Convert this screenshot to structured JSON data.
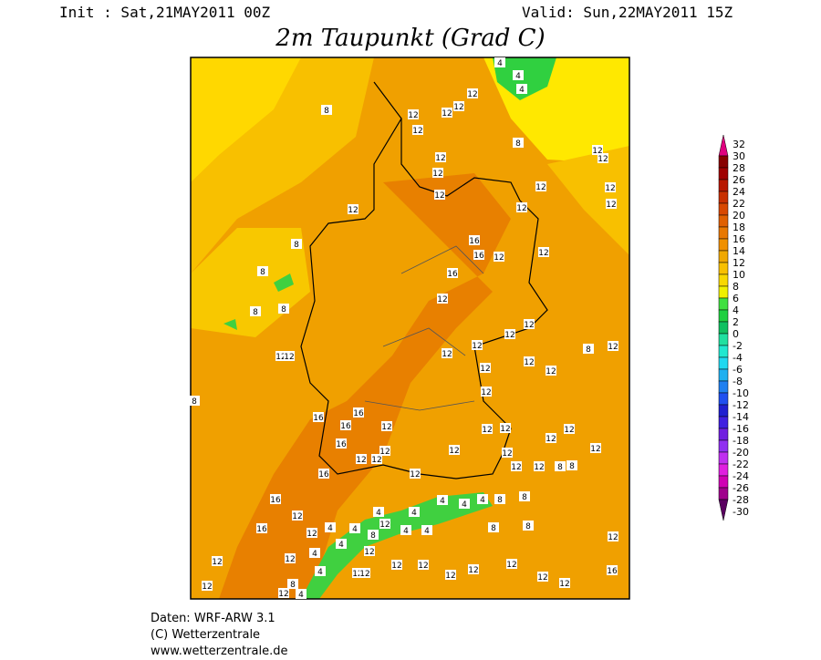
{
  "header": {
    "init": "Init : Sat,21MAY2011 00Z",
    "valid": "Valid: Sun,22MAY2011 15Z",
    "title": "2m Taupunkt (Grad C)"
  },
  "legend": {
    "levels": [
      32,
      30,
      28,
      26,
      24,
      22,
      20,
      18,
      16,
      14,
      12,
      10,
      8,
      6,
      4,
      2,
      0,
      -2,
      -4,
      -6,
      -8,
      -10,
      -12,
      -14,
      -16,
      -18,
      -20,
      -22,
      -24,
      -26,
      -28,
      -30
    ],
    "colors": [
      "#e0007f",
      "#880000",
      "#a00000",
      "#b81800",
      "#c83000",
      "#d84800",
      "#e06000",
      "#e87800",
      "#f09000",
      "#f0a800",
      "#f8c000",
      "#f8d800",
      "#f0f000",
      "#40e040",
      "#20d040",
      "#10c060",
      "#20e0a0",
      "#20e8d0",
      "#20d8f0",
      "#20b0f0",
      "#2080f0",
      "#2050f0",
      "#2020d0",
      "#4020e0",
      "#7020e0",
      "#9030f0",
      "#c030f0",
      "#e020e0",
      "#d000b4",
      "#a0008c",
      "#5a0060"
    ]
  },
  "map": {
    "labels": [
      8,
      12,
      12,
      12,
      12,
      12,
      12,
      8,
      4,
      4,
      4,
      12,
      12,
      12,
      12,
      12,
      12,
      12,
      12,
      12,
      8,
      16,
      16,
      12,
      12,
      16,
      8,
      8,
      8,
      12,
      12,
      12,
      8,
      12,
      12,
      12,
      12,
      12,
      12,
      12,
      12,
      8,
      12,
      16,
      16,
      16,
      12,
      12,
      12,
      12,
      16,
      12,
      12,
      12,
      12,
      12,
      12,
      12,
      16,
      12,
      12,
      12,
      8,
      8,
      16,
      4,
      4,
      4,
      8,
      8,
      4,
      4,
      12,
      16,
      12,
      4,
      4,
      8,
      12,
      4,
      4,
      8,
      8,
      12,
      12,
      12,
      4,
      4,
      4,
      12,
      12,
      12,
      12,
      12,
      12,
      12,
      12,
      12,
      12,
      16,
      12,
      8,
      12,
      4
    ]
  },
  "footer": {
    "lines": [
      "Daten: WRF-ARW 3.1",
      "(C) Wetterzentrale",
      "www.wetterzentrale.de"
    ]
  }
}
